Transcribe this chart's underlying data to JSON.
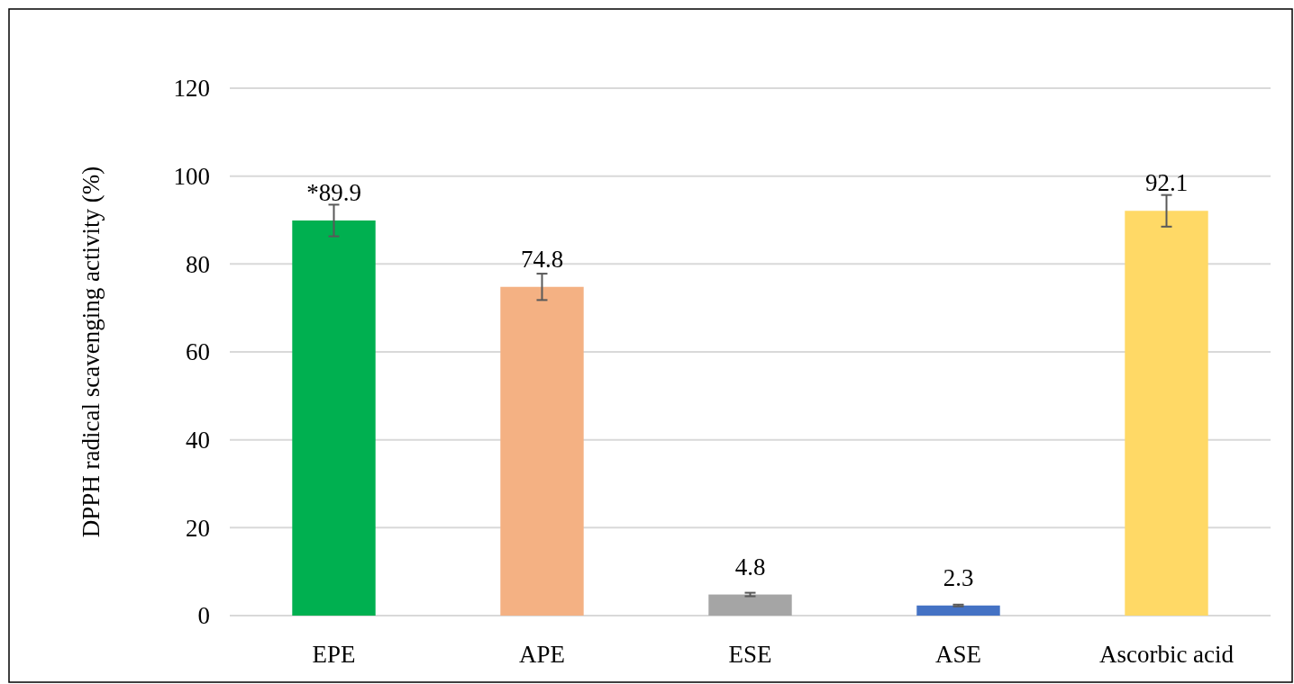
{
  "chart_data": {
    "type": "bar",
    "ylabel": "DPPH radical scavenging activity (%)",
    "categories": [
      "EPE",
      "APE",
      "ESE",
      "ASE",
      "Ascorbic acid"
    ],
    "values": [
      89.9,
      74.8,
      4.8,
      2.3,
      92.1
    ],
    "colors": [
      "#00b050",
      "#f4b183",
      "#a5a5a5",
      "#4472c4",
      "#ffd966"
    ],
    "errors": [
      3.6,
      3,
      0.4,
      0.2,
      3.6
    ],
    "value_labels": [
      "*89.9",
      "74.8",
      "4.8",
      "2.3",
      "92.1"
    ],
    "ylim": [
      0,
      120
    ],
    "yticks": [
      0,
      20,
      40,
      60,
      80,
      100,
      120
    ],
    "grid": "y"
  }
}
